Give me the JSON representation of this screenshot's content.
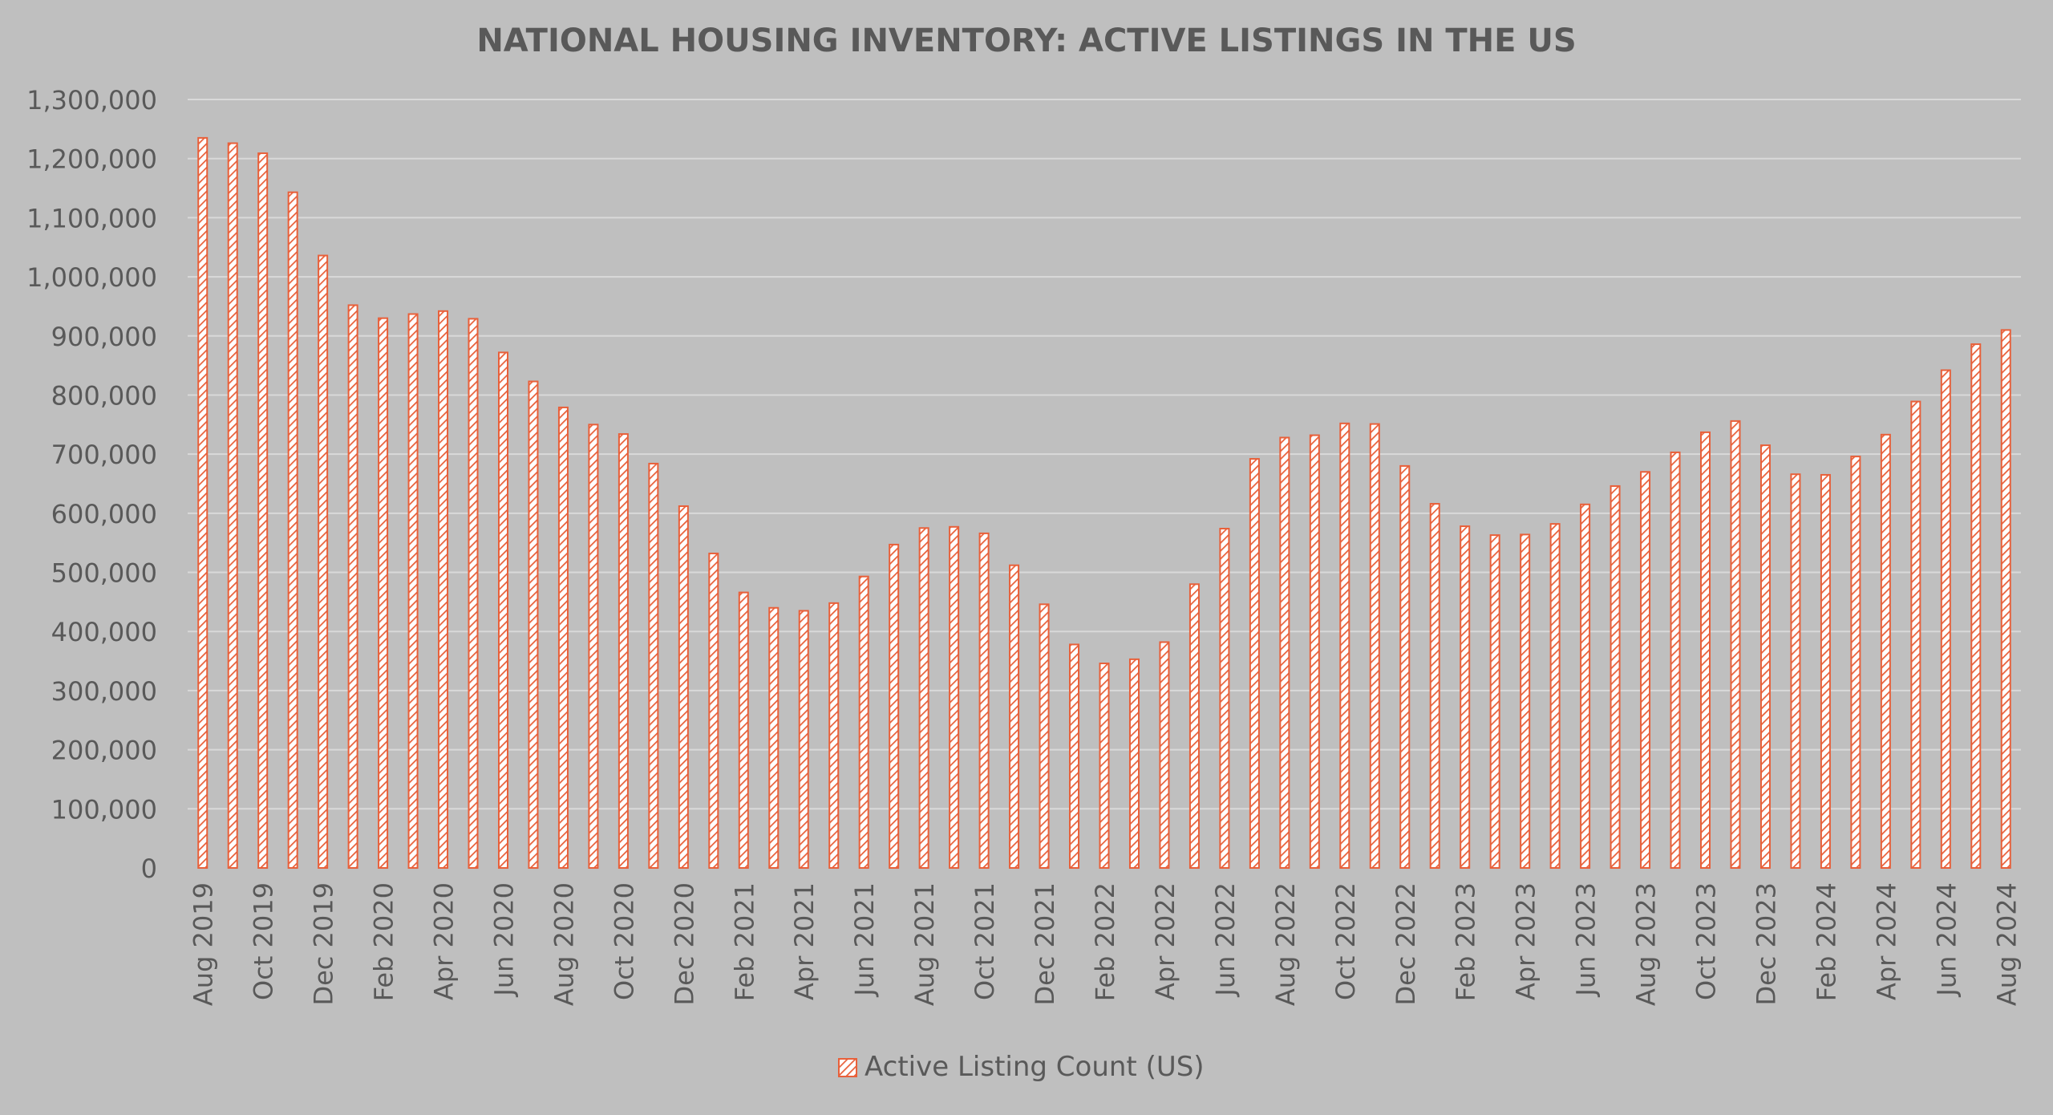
{
  "chart_data": {
    "type": "bar",
    "title": "NATIONAL HOUSING INVENTORY: ACTIVE LISTINGS IN THE US",
    "xlabel": "",
    "ylabel": "",
    "ylim": [
      0,
      1300000
    ],
    "yticks": [
      "0",
      "100,000",
      "200,000",
      "300,000",
      "400,000",
      "500,000",
      "600,000",
      "700,000",
      "800,000",
      "900,000",
      "1,000,000",
      "1,100,000",
      "1,200,000",
      "1,300,000"
    ],
    "grid": true,
    "legend_position": "bottom",
    "colors": {
      "background": "#bfbfbf",
      "bar_stroke": "#e8603a",
      "bar_hatch": "#e8603a",
      "bar_fill": "#ffffff",
      "gridline": "#d9d9d9",
      "text": "#595959",
      "title": "#595959"
    },
    "categories": [
      "Aug 2019",
      "Sep 2019",
      "Oct 2019",
      "Nov 2019",
      "Dec 2019",
      "Jan 2020",
      "Feb 2020",
      "Mar 2020",
      "Apr 2020",
      "May 2020",
      "Jun 2020",
      "Jul 2020",
      "Aug 2020",
      "Sep 2020",
      "Oct 2020",
      "Nov 2020",
      "Dec 2020",
      "Jan 2021",
      "Feb 2021",
      "Mar 2021",
      "Apr 2021",
      "May 2021",
      "Jun 2021",
      "Jul 2021",
      "Aug 2021",
      "Sep 2021",
      "Oct 2021",
      "Nov 2021",
      "Dec 2021",
      "Jan 2022",
      "Feb 2022",
      "Mar 2022",
      "Apr 2022",
      "May 2022",
      "Jun 2022",
      "Jul 2022",
      "Aug 2022",
      "Sep 2022",
      "Oct 2022",
      "Nov 2022",
      "Dec 2022",
      "Jan 2023",
      "Feb 2023",
      "Mar 2023",
      "Apr 2023",
      "May 2023",
      "Jun 2023",
      "Jul 2023",
      "Aug 2023",
      "Sep 2023",
      "Oct 2023",
      "Nov 2023",
      "Dec 2023",
      "Jan 2024",
      "Feb 2024",
      "Mar 2024",
      "Apr 2024",
      "May 2024",
      "Jun 2024",
      "Jul 2024",
      "Aug 2024"
    ],
    "tick_labels_shown": [
      "Aug 2019",
      "Oct 2019",
      "Dec 2019",
      "Feb 2020",
      "Apr 2020",
      "Jun 2020",
      "Aug 2020",
      "Oct 2020",
      "Dec 2020",
      "Feb 2021",
      "Apr 2021",
      "Jun 2021",
      "Aug 2021",
      "Oct 2021",
      "Dec 2021",
      "Feb 2022",
      "Apr 2022",
      "Jun 2022",
      "Aug 2022",
      "Oct 2022",
      "Dec 2022",
      "Feb 2023",
      "Apr 2023",
      "Jun 2023",
      "Aug 2023",
      "Oct 2023",
      "Dec 2023",
      "Feb 2024",
      "Apr 2024",
      "Jun 2024",
      "Aug 2024"
    ],
    "series": [
      {
        "name": "Active Listing Count (US)",
        "values": [
          1235000,
          1226000,
          1209000,
          1143000,
          1036000,
          952000,
          930000,
          937000,
          942000,
          929000,
          872000,
          823000,
          779000,
          750000,
          734000,
          684000,
          612000,
          532000,
          466000,
          440000,
          435000,
          448000,
          493000,
          547000,
          575000,
          577000,
          566000,
          512000,
          446000,
          378000,
          346000,
          353000,
          382000,
          480000,
          574000,
          692000,
          728000,
          732000,
          752000,
          751000,
          680000,
          616000,
          578000,
          563000,
          564000,
          582000,
          615000,
          646000,
          670000,
          703000,
          737000,
          756000,
          715000,
          666000,
          665000,
          696000,
          733000,
          789000,
          842000,
          886000,
          910000
        ]
      }
    ]
  }
}
